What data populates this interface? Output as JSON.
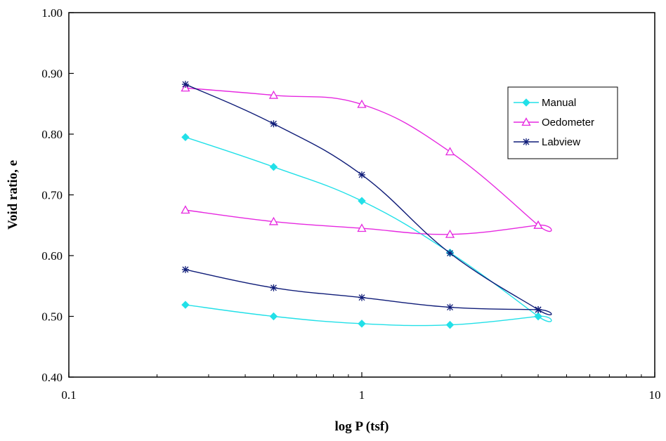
{
  "chart_data": {
    "type": "line",
    "title": "",
    "xlabel": "log P (tsf)",
    "ylabel": "Void ratio, e",
    "x_scale": "log",
    "xlim": [
      0.1,
      10
    ],
    "ylim": [
      0.4,
      1.0
    ],
    "x_ticks": [
      0.1,
      1,
      10
    ],
    "x_tick_labels": [
      "0.1",
      "1",
      "10"
    ],
    "y_ticks": [
      0.4,
      0.5,
      0.6,
      0.7,
      0.8,
      0.9,
      1.0
    ],
    "y_tick_labels": [
      "0.40",
      "0.50",
      "0.60",
      "0.70",
      "0.80",
      "0.90",
      "1.00"
    ],
    "grid": false,
    "legend_position": "top-right",
    "series": [
      {
        "name": "Manual",
        "color": "#22e0e8",
        "marker": "diamond",
        "x": [
          0.25,
          0.5,
          1,
          2,
          4,
          4,
          2,
          1,
          0.5,
          0.25
        ],
        "y": [
          0.795,
          0.746,
          0.69,
          0.605,
          0.5,
          0.5,
          0.486,
          0.488,
          0.5,
          0.519
        ]
      },
      {
        "name": "Oedometer",
        "color": "#e629e0",
        "marker": "triangle",
        "x": [
          0.25,
          0.5,
          1,
          2,
          4,
          4,
          2,
          1,
          0.5,
          0.25
        ],
        "y": [
          0.876,
          0.864,
          0.849,
          0.771,
          0.65,
          0.65,
          0.635,
          0.645,
          0.656,
          0.675
        ]
      },
      {
        "name": "Labview",
        "color": "#0f1c78",
        "marker": "star",
        "x": [
          0.25,
          0.5,
          1,
          2,
          4,
          4,
          2,
          1,
          0.5,
          0.25
        ],
        "y": [
          0.882,
          0.817,
          0.733,
          0.604,
          0.511,
          0.511,
          0.515,
          0.531,
          0.547,
          0.577
        ]
      }
    ]
  }
}
